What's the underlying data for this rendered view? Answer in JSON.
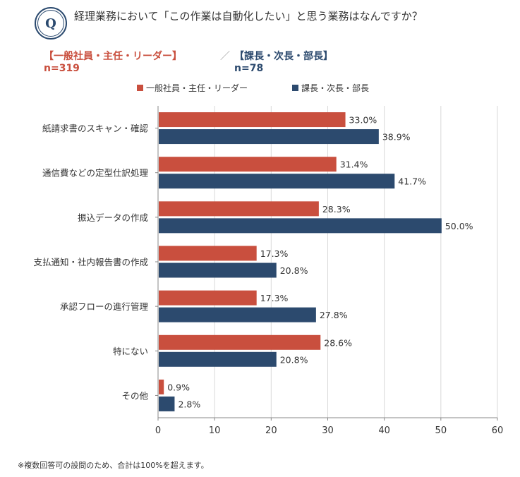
{
  "header": {
    "badge": "Q",
    "question": "経理業務において「この作業は自動化したい」と思う業務はなんですか？"
  },
  "groups": [
    {
      "name": "【一般社員・主任・リーダー】",
      "n": "n=319"
    },
    {
      "name": "【課長・次長・部長】",
      "n": "n=78"
    }
  ],
  "group_separator": "／",
  "footnote": "※複数回答可の設問のため、合計は100%を超えます。",
  "colors": {
    "general": "#c94f3e",
    "manager": "#2c4a6e"
  },
  "chart_data": {
    "type": "bar",
    "orientation": "horizontal",
    "categories": [
      "紙請求書のスキャン・確認",
      "通信費などの定型仕訳処理",
      "振込データの作成",
      "支払通知・社内報告書の作成",
      "承認フローの進行管理",
      "特にない",
      "その他"
    ],
    "series": [
      {
        "name": "一般社員・主任・リーダー",
        "color": "#c94f3e",
        "values": [
          33.0,
          31.4,
          28.3,
          17.3,
          17.3,
          28.6,
          0.9
        ]
      },
      {
        "name": "課長・次長・部長",
        "color": "#2c4a6e",
        "values": [
          38.9,
          41.7,
          50.0,
          20.8,
          27.8,
          20.8,
          2.8
        ]
      }
    ],
    "value_suffix": "%",
    "xlim": [
      0,
      60
    ],
    "xticks": [
      0,
      10,
      20,
      30,
      40,
      50,
      60
    ],
    "grid": true,
    "legend_position": "top"
  }
}
